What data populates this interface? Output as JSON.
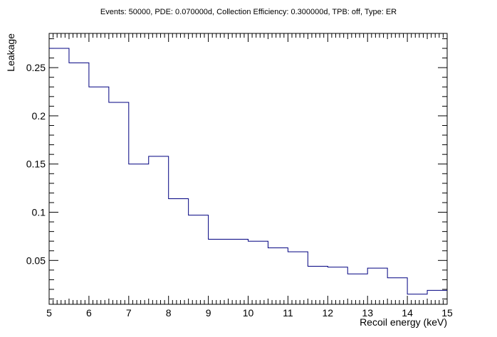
{
  "chart_data": {
    "type": "line",
    "style": "step-histogram",
    "title": "Events: 50000, PDE: 0.070000d, Collection Efficiency: 0.300000d, TPB: off, Type: ER",
    "xlabel": "Recoil energy (keV)",
    "ylabel": "Leakage",
    "xlim": [
      5,
      15
    ],
    "ylim": [
      0.0045,
      0.2855
    ],
    "x_ticks": [
      "5",
      "6",
      "7",
      "8",
      "9",
      "10",
      "11",
      "12",
      "13",
      "14",
      "15"
    ],
    "y_ticks": [
      "0.05",
      "0.1",
      "0.15",
      "0.2",
      "0.25"
    ],
    "series": [
      {
        "color": "#000080",
        "bin_edges": [
          5,
          5.5,
          6,
          6.5,
          7,
          7.5,
          8,
          8.5,
          9,
          9.5,
          10,
          10.5,
          11,
          11.5,
          12,
          12.5,
          13,
          13.5,
          14,
          14.5,
          15
        ],
        "values": [
          0.27,
          0.255,
          0.23,
          0.214,
          0.15,
          0.158,
          0.114,
          0.097,
          0.072,
          0.072,
          0.07,
          0.063,
          0.059,
          0.044,
          0.043,
          0.036,
          0.042,
          0.032,
          0.015,
          0.019
        ]
      }
    ],
    "grid": false,
    "legend": "none"
  }
}
